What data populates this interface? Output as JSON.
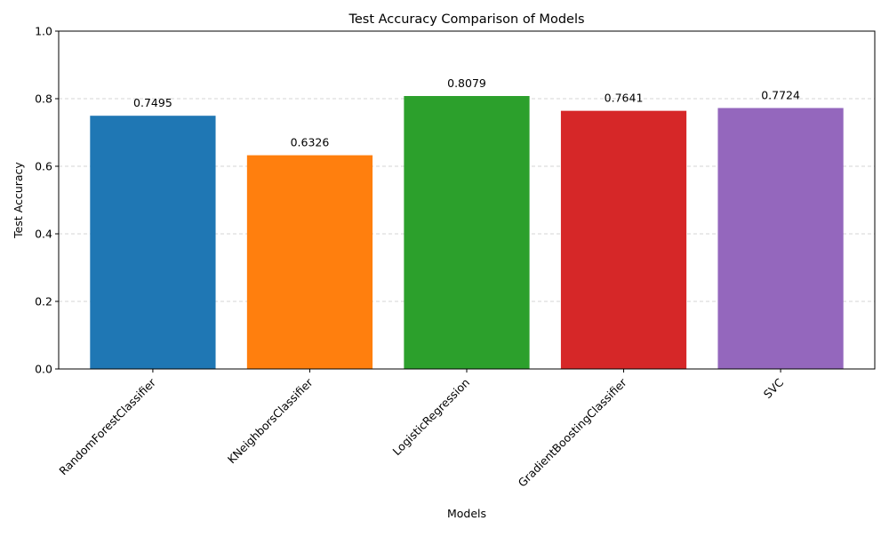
{
  "chart_data": {
    "type": "bar",
    "title": "Test Accuracy Comparison of Models",
    "xlabel": "Models",
    "ylabel": "Test Accuracy",
    "categories": [
      "RandomForestClassifier",
      "KNeighborsClassifier",
      "LogisticRegression",
      "GradientBoostingClassifier",
      "SVC"
    ],
    "values": [
      0.7495,
      0.6326,
      0.8079,
      0.7641,
      0.7724
    ],
    "value_labels": [
      "0.7495",
      "0.6326",
      "0.8079",
      "0.7641",
      "0.7724"
    ],
    "colors": [
      "#1f77b4",
      "#ff7f0e",
      "#2ca02c",
      "#d62728",
      "#9467bd"
    ],
    "ylim": [
      0,
      1.0
    ],
    "yticks": [
      0.0,
      0.2,
      0.4,
      0.6,
      0.8,
      1.0
    ],
    "ytick_labels": [
      "0.0",
      "0.2",
      "0.4",
      "0.6",
      "0.8",
      "1.0"
    ],
    "grid": "y-dashed",
    "legend": "none"
  }
}
